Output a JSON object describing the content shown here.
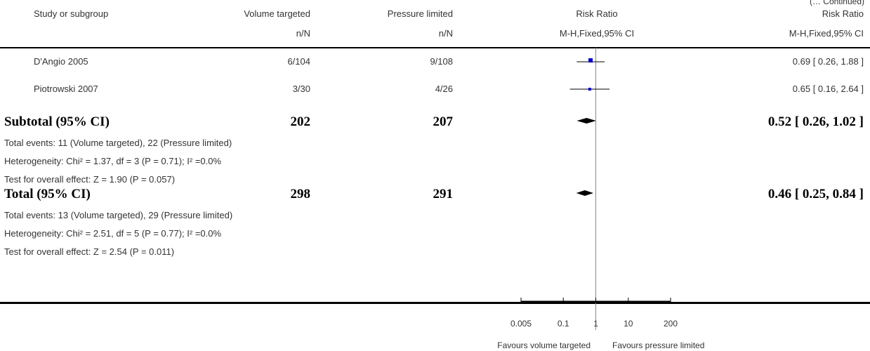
{
  "continued_label": "(… Continued)",
  "headers": {
    "study": "Study or subgroup",
    "group1": "Volume targeted",
    "group2": "Pressure limited",
    "rr": "Risk Ratio",
    "rr2": "Risk Ratio",
    "nN1": "n/N",
    "nN2": "n/N",
    "method": "M-H,Fixed,95% CI",
    "method2": "M-H,Fixed,95% CI"
  },
  "studies": [
    {
      "name": "D'Angio 2005",
      "g1": "6/104",
      "g2": "9/108",
      "rr_text": "0.69 [ 0.26, 1.88 ]"
    },
    {
      "name": "Piotrowski 2007",
      "g1": "3/30",
      "g2": "4/26",
      "rr_text": "0.65 [ 0.16, 2.64 ]"
    }
  ],
  "subtotal": {
    "label": "Subtotal (95% CI)",
    "n1": "202",
    "n2": "207",
    "rr_text": "0.52 [ 0.26, 1.02 ]",
    "events": "Total events: 11 (Volume targeted), 22 (Pressure limited)",
    "heterogeneity": "Heterogeneity: Chi² = 1.37, df = 3 (P = 0.71); I² =0.0%",
    "test": "Test for overall effect: Z = 1.90 (P = 0.057)"
  },
  "total": {
    "label": "Total (95% CI)",
    "n1": "298",
    "n2": "291",
    "rr_text": "0.46 [ 0.25, 0.84 ]",
    "events": "Total events: 13 (Volume targeted), 29 (Pressure limited)",
    "heterogeneity": "Heterogeneity: Chi² = 2.51, df = 5 (P = 0.77); I² =0.0%",
    "test": "Test for overall effect: Z = 2.54 (P = 0.011)"
  },
  "axis": {
    "ticks": [
      "0.005",
      "0.1",
      "1",
      "10",
      "200"
    ],
    "favours_left": "Favours volume targeted",
    "favours_right": "Favours pressure limited"
  },
  "chart_data": {
    "type": "forest",
    "scale": "log",
    "xlim": [
      0.005,
      200
    ],
    "reference_line": 1,
    "tick_values": [
      0.005,
      0.1,
      1,
      10,
      200
    ],
    "studies": [
      {
        "name": "D'Angio 2005",
        "rr": 0.69,
        "ci_low": 0.26,
        "ci_high": 1.88
      },
      {
        "name": "Piotrowski 2007",
        "rr": 0.65,
        "ci_low": 0.16,
        "ci_high": 2.64
      }
    ],
    "pooled": [
      {
        "name": "Subtotal (95% CI)",
        "rr": 0.52,
        "ci_low": 0.26,
        "ci_high": 1.02
      },
      {
        "name": "Total (95% CI)",
        "rr": 0.46,
        "ci_low": 0.25,
        "ci_high": 0.84
      }
    ],
    "colors": {
      "marker": "#0000cc",
      "diamond": "#000000"
    }
  }
}
